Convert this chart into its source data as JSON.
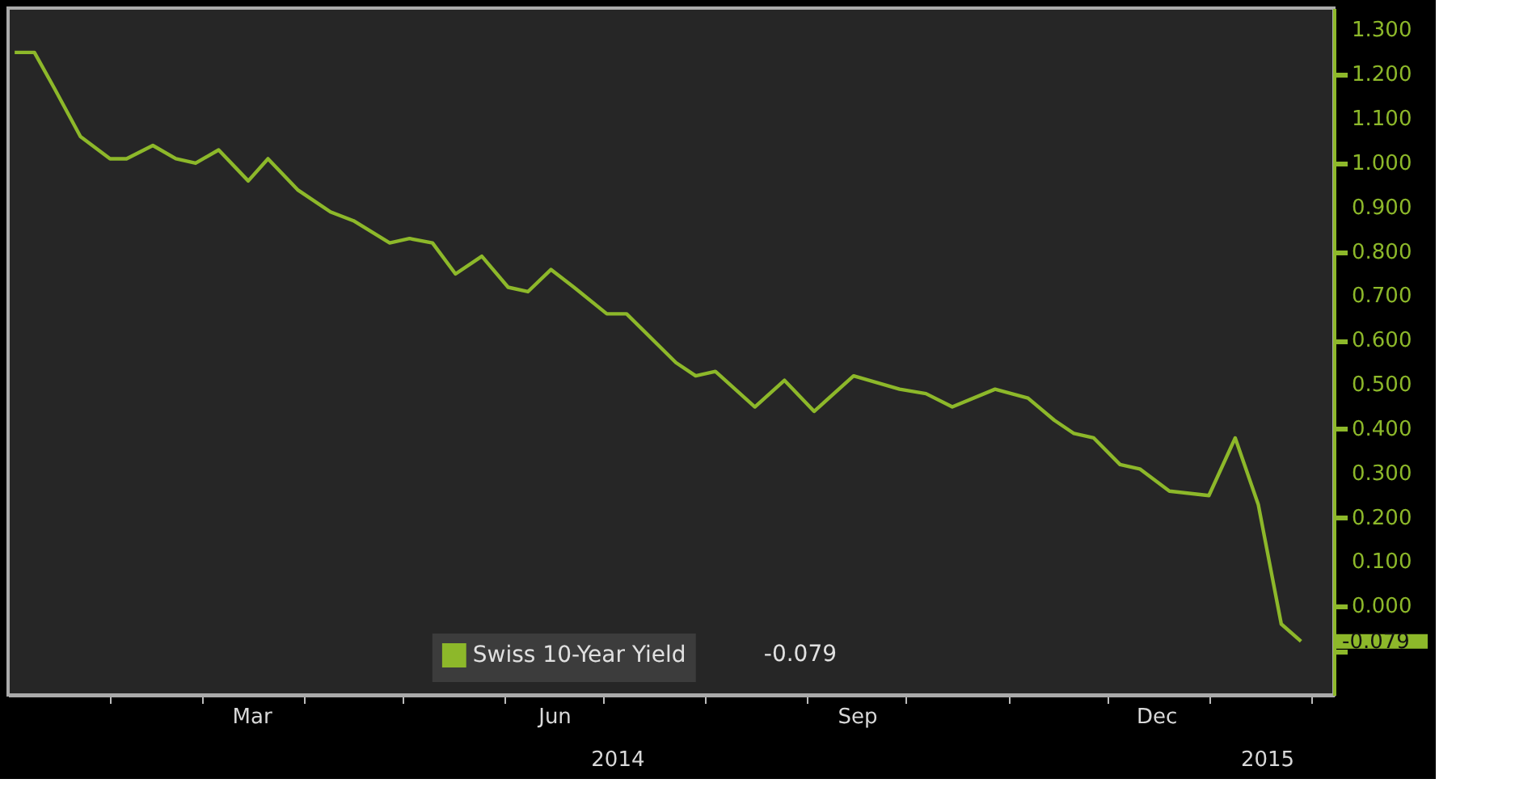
{
  "chart_data": {
    "type": "line",
    "x": [
      "2014-01-03",
      "2014-01-09",
      "2014-01-15",
      "2014-01-23",
      "2014-02-01",
      "2014-02-06",
      "2014-02-14",
      "2014-02-21",
      "2014-02-27",
      "2014-03-06",
      "2014-03-15",
      "2014-03-21",
      "2014-03-30",
      "2014-04-09",
      "2014-04-16",
      "2014-04-27",
      "2014-05-03",
      "2014-05-10",
      "2014-05-17",
      "2014-05-25",
      "2014-06-02",
      "2014-06-08",
      "2014-06-15",
      "2014-06-22",
      "2014-07-02",
      "2014-07-08",
      "2014-07-23",
      "2014-07-29",
      "2014-08-04",
      "2014-08-16",
      "2014-08-25",
      "2014-09-03",
      "2014-09-15",
      "2014-09-29",
      "2014-10-07",
      "2014-10-15",
      "2014-10-28",
      "2014-11-07",
      "2014-11-15",
      "2014-11-21",
      "2014-11-27",
      "2014-12-05",
      "2014-12-11",
      "2014-12-20",
      "2015-01-01",
      "2015-01-09",
      "2015-01-16",
      "2015-01-23",
      "2015-01-29"
    ],
    "series": [
      {
        "name": "Swiss 10-Year Yield",
        "color": "#8db82a",
        "values": [
          1.25,
          1.25,
          1.17,
          1.06,
          1.01,
          1.01,
          1.04,
          1.01,
          1.0,
          1.03,
          0.96,
          1.01,
          0.94,
          0.89,
          0.87,
          0.82,
          0.83,
          0.82,
          0.75,
          0.79,
          0.72,
          0.71,
          0.76,
          0.72,
          0.66,
          0.66,
          0.55,
          0.52,
          0.53,
          0.45,
          0.51,
          0.44,
          0.52,
          0.49,
          0.48,
          0.45,
          0.49,
          0.47,
          0.42,
          0.39,
          0.38,
          0.32,
          0.31,
          0.26,
          0.25,
          0.38,
          0.23,
          -0.04,
          -0.079
        ]
      }
    ],
    "xlim": [
      "2014-01-01",
      "2015-02-08"
    ],
    "xticks": [
      {
        "value": "2014-02-01",
        "label": null
      },
      {
        "value": "2014-03-01",
        "label": null
      },
      {
        "value": "2014-03-16",
        "label": "Mar"
      },
      {
        "value": "2014-04-01",
        "label": null
      },
      {
        "value": "2014-05-01",
        "label": null
      },
      {
        "value": "2014-06-01",
        "label": null
      },
      {
        "value": "2014-06-16",
        "label": "Jun"
      },
      {
        "value": "2014-07-01",
        "label": null
      },
      {
        "value": "2014-08-01",
        "label": null
      },
      {
        "value": "2014-09-01",
        "label": null
      },
      {
        "value": "2014-09-16",
        "label": "Sep"
      },
      {
        "value": "2014-10-01",
        "label": null
      },
      {
        "value": "2014-11-01",
        "label": null
      },
      {
        "value": "2014-12-01",
        "label": null
      },
      {
        "value": "2014-12-16",
        "label": "Dec"
      },
      {
        "value": "2015-01-01",
        "label": null
      },
      {
        "value": "2015-02-01",
        "label": null
      }
    ],
    "ylim": [
      -0.2,
      1.35
    ],
    "yticks": [
      {
        "value": 1.3,
        "label": "1.300"
      },
      {
        "value": 1.2,
        "label": "1.200"
      },
      {
        "value": 1.1,
        "label": "1.100"
      },
      {
        "value": 1.0,
        "label": "1.000"
      },
      {
        "value": 0.9,
        "label": "0.900"
      },
      {
        "value": 0.8,
        "label": "0.800"
      },
      {
        "value": 0.7,
        "label": "0.700"
      },
      {
        "value": 0.6,
        "label": "0.600"
      },
      {
        "value": 0.5,
        "label": "0.500"
      },
      {
        "value": 0.4,
        "label": "0.400"
      },
      {
        "value": 0.3,
        "label": "0.300"
      },
      {
        "value": 0.2,
        "label": "0.200"
      },
      {
        "value": 0.1,
        "label": "0.100"
      },
      {
        "value": 0.0,
        "label": "0.000"
      },
      {
        "value": -0.079,
        "label": "-0.079"
      },
      {
        "value": -0.1,
        "label": null
      }
    ],
    "annotations": [
      "2014",
      "2015",
      "-0.079"
    ],
    "grid": false,
    "legend": "bottom",
    "marker": "none",
    "line_style": "solid"
  }
}
